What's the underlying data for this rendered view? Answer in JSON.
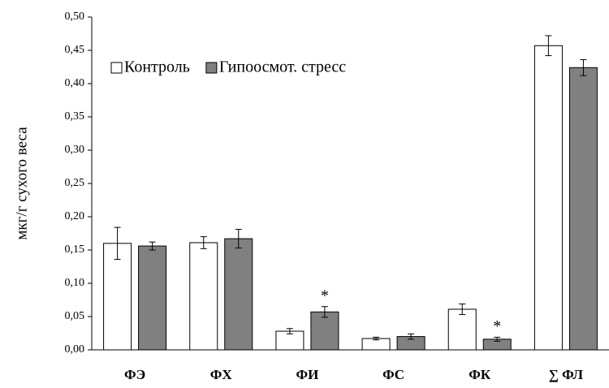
{
  "chart_data": {
    "type": "bar",
    "y_label": "мкг/г сухого веса",
    "categories": [
      "ФЭ",
      "ФХ",
      "ФИ",
      "ФС",
      "ФК",
      "∑ ФЛ"
    ],
    "series": [
      {
        "name": "Контроль",
        "color": "#ffffff",
        "values": [
          0.16,
          0.161,
          0.028,
          0.017,
          0.061,
          0.457
        ],
        "errors": [
          0.024,
          0.009,
          0.004,
          0.002,
          0.008,
          0.015
        ]
      },
      {
        "name": "Гипоосмот. стресс",
        "color": "#808080",
        "values": [
          0.156,
          0.167,
          0.057,
          0.02,
          0.016,
          0.424
        ],
        "errors": [
          0.006,
          0.014,
          0.008,
          0.004,
          0.003,
          0.012
        ],
        "significance": [
          null,
          null,
          "*",
          null,
          "*",
          null
        ]
      }
    ],
    "ylim": [
      0,
      0.5
    ],
    "yticks": [
      {
        "value": 0,
        "label": "0,00"
      },
      {
        "value": 0.05,
        "label": "0,05"
      },
      {
        "value": 0.1,
        "label": "0,10"
      },
      {
        "value": 0.15,
        "label": "0,15"
      },
      {
        "value": 0.2,
        "label": "0,20"
      },
      {
        "value": 0.25,
        "label": "0,25"
      },
      {
        "value": 0.3,
        "label": "0,30"
      },
      {
        "value": 0.35,
        "label": "0,35"
      },
      {
        "value": 0.4,
        "label": "0,40"
      },
      {
        "value": 0.45,
        "label": "0,45"
      },
      {
        "value": 0.5,
        "label": "0,50"
      }
    ],
    "legend": "top-left",
    "grid": false
  }
}
